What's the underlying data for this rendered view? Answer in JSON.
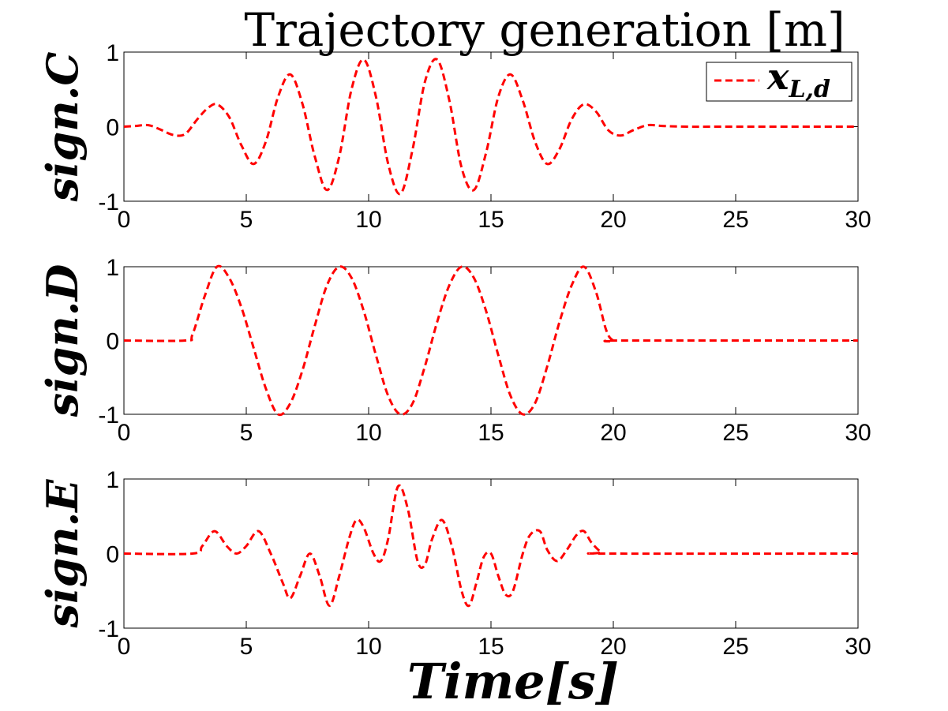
{
  "figure": {
    "title": "Trajectory generation [m]",
    "xlabel": "Time[s]",
    "legend": {
      "label": "x_{L,d}",
      "main": "x",
      "sub": "L,d",
      "position": "top-right"
    },
    "line_color": "#ff0000"
  },
  "chart_data": [
    {
      "type": "line",
      "ylabel": "sign.C",
      "xlim": [
        0,
        30
      ],
      "ylim": [
        -1,
        1
      ],
      "xticks": [
        "0",
        "5",
        "10",
        "15",
        "20",
        "25",
        "30"
      ],
      "yticks": [
        "-1",
        "0",
        "1"
      ],
      "grid": false,
      "series": [
        {
          "style": "dashed",
          "x": [
            0,
            0.5,
            1.0,
            1.5,
            2.0,
            2.5,
            3.0,
            3.4,
            3.8,
            4.3,
            4.8,
            5.3,
            5.8,
            6.3,
            6.8,
            7.3,
            7.8,
            8.3,
            8.8,
            9.3,
            9.8,
            10.3,
            10.8,
            11.3,
            11.8,
            12.3,
            12.8,
            13.3,
            13.8,
            14.3,
            14.8,
            15.3,
            15.8,
            16.3,
            16.8,
            17.3,
            17.8,
            18.3,
            18.8,
            19.3,
            19.8,
            20.3,
            20.8,
            21.4,
            22.0,
            23.0,
            25.0,
            30.0
          ],
          "y": [
            0,
            0.01,
            0.02,
            -0.04,
            -0.11,
            -0.1,
            0.1,
            0.24,
            0.3,
            0.13,
            -0.25,
            -0.5,
            -0.2,
            0.4,
            0.7,
            0.3,
            -0.4,
            -0.85,
            -0.4,
            0.5,
            0.9,
            0.4,
            -0.5,
            -0.9,
            -0.3,
            0.6,
            0.9,
            0.35,
            -0.55,
            -0.85,
            -0.35,
            0.4,
            0.7,
            0.35,
            -0.2,
            -0.5,
            -0.3,
            0.1,
            0.3,
            0.2,
            -0.05,
            -0.12,
            -0.05,
            0.02,
            0.01,
            0,
            0,
            0
          ]
        }
      ]
    },
    {
      "type": "line",
      "ylabel": "sign.D",
      "xlim": [
        0,
        30
      ],
      "ylim": [
        -1,
        1
      ],
      "xticks": [
        "0",
        "5",
        "10",
        "15",
        "20",
        "25",
        "30"
      ],
      "yticks": [
        "-1",
        "0",
        "1"
      ],
      "grid": false,
      "series": [
        {
          "style": "dashed",
          "x": [
            0,
            2.5,
            2.8,
            3.3,
            3.8,
            4.3,
            4.8,
            5.3,
            5.8,
            6.3,
            6.8,
            7.3,
            7.8,
            8.3,
            8.8,
            9.3,
            9.8,
            10.3,
            10.8,
            11.3,
            11.8,
            12.3,
            12.8,
            13.3,
            13.8,
            14.3,
            14.8,
            15.3,
            15.8,
            16.3,
            16.8,
            17.3,
            17.8,
            18.3,
            18.8,
            19.3,
            19.7,
            20.0,
            20.5,
            30.0
          ],
          "y": [
            0,
            0,
            0.08,
            0.6,
            1.0,
            0.85,
            0.45,
            -0.1,
            -0.65,
            -1.0,
            -0.85,
            -0.4,
            0.2,
            0.75,
            1.0,
            0.85,
            0.4,
            -0.2,
            -0.75,
            -1.0,
            -0.85,
            -0.35,
            0.25,
            0.75,
            1.0,
            0.85,
            0.4,
            -0.2,
            -0.75,
            -1.0,
            -0.85,
            -0.35,
            0.25,
            0.75,
            1.0,
            0.65,
            0.15,
            0,
            0,
            0
          ]
        }
      ]
    },
    {
      "type": "line",
      "ylabel": "sign.E",
      "xlim": [
        0,
        30
      ],
      "ylim": [
        -1,
        1
      ],
      "xticks": [
        "0",
        "5",
        "10",
        "15",
        "20",
        "25",
        "30"
      ],
      "yticks": [
        "-1",
        "0",
        "1"
      ],
      "grid": false,
      "series": [
        {
          "style": "dashed",
          "x": [
            0,
            2.8,
            3.2,
            3.7,
            4.2,
            4.6,
            5.0,
            5.5,
            6.0,
            6.5,
            6.8,
            7.2,
            7.6,
            8.0,
            8.4,
            8.8,
            9.2,
            9.5,
            9.8,
            10.2,
            10.5,
            10.8,
            11.2,
            11.6,
            12.0,
            12.3,
            12.6,
            13.0,
            13.4,
            13.8,
            14.1,
            14.4,
            14.7,
            15.0,
            15.3,
            15.6,
            15.9,
            16.3,
            16.6,
            17.0,
            17.3,
            17.7,
            18.1,
            18.5,
            18.8,
            19.1,
            19.5,
            19.8,
            30.0
          ],
          "y": [
            0,
            0,
            0.1,
            0.3,
            0.1,
            0,
            0.1,
            0.3,
            0.0,
            -0.4,
            -0.6,
            -0.3,
            0.0,
            -0.3,
            -0.7,
            -0.3,
            0.2,
            0.45,
            0.35,
            0.0,
            -0.1,
            0.2,
            0.9,
            0.6,
            -0.1,
            -0.15,
            0.2,
            0.45,
            0.1,
            -0.5,
            -0.7,
            -0.4,
            -0.05,
            0.0,
            -0.3,
            -0.55,
            -0.5,
            0.0,
            0.25,
            0.3,
            0.05,
            -0.1,
            0.05,
            0.25,
            0.3,
            0.15,
            0.02,
            0,
            0
          ]
        }
      ]
    }
  ]
}
